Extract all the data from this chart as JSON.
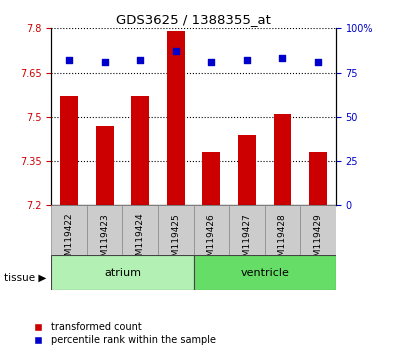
{
  "title": "GDS3625 / 1388355_at",
  "samples": [
    "GSM119422",
    "GSM119423",
    "GSM119424",
    "GSM119425",
    "GSM119426",
    "GSM119427",
    "GSM119428",
    "GSM119429"
  ],
  "bar_values": [
    7.57,
    7.47,
    7.57,
    7.79,
    7.38,
    7.44,
    7.51,
    7.38
  ],
  "percentile_values": [
    82,
    81,
    82,
    87,
    81,
    82,
    83,
    81
  ],
  "bar_bottom": 7.2,
  "ylim_left": [
    7.2,
    7.8
  ],
  "ylim_right": [
    0,
    100
  ],
  "yticks_left": [
    7.2,
    7.35,
    7.5,
    7.65,
    7.8
  ],
  "yticks_right": [
    0,
    25,
    50,
    75,
    100
  ],
  "ytick_labels_left": [
    "7.2",
    "7.35",
    "7.5",
    "7.65",
    "7.8"
  ],
  "ytick_labels_right": [
    "0",
    "25",
    "50",
    "75",
    "100%"
  ],
  "groups": [
    {
      "label": "atrium",
      "samples": [
        0,
        1,
        2,
        3
      ],
      "color": "#b3f0b3"
    },
    {
      "label": "ventricle",
      "samples": [
        4,
        5,
        6,
        7
      ],
      "color": "#66dd66"
    }
  ],
  "bar_color": "#cc0000",
  "dot_color": "#0000cc",
  "left_tick_color": "#cc0000",
  "right_tick_color": "#0000cc",
  "tissue_label": "tissue",
  "legend_bar_label": "transformed count",
  "legend_dot_label": "percentile rank within the sample",
  "background_color": "#ffffff",
  "plot_bg_color": "#ffffff",
  "grid_color": "#000000",
  "xlabel_color": "#000000",
  "group_box_color": "#cccccc"
}
